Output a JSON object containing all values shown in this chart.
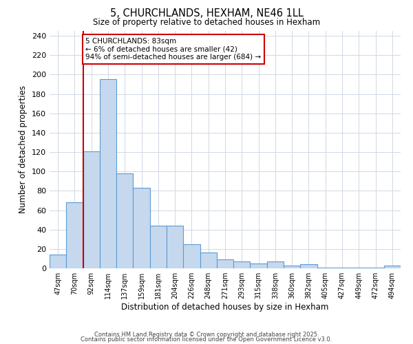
{
  "title": "5, CHURCHLANDS, HEXHAM, NE46 1LL",
  "subtitle": "Size of property relative to detached houses in Hexham",
  "xlabel": "Distribution of detached houses by size in Hexham",
  "ylabel": "Number of detached properties",
  "bar_labels": [
    "47sqm",
    "70sqm",
    "92sqm",
    "114sqm",
    "137sqm",
    "159sqm",
    "181sqm",
    "204sqm",
    "226sqm",
    "248sqm",
    "271sqm",
    "293sqm",
    "315sqm",
    "338sqm",
    "360sqm",
    "382sqm",
    "405sqm",
    "427sqm",
    "449sqm",
    "472sqm",
    "494sqm"
  ],
  "bar_values": [
    14,
    68,
    121,
    195,
    98,
    83,
    44,
    44,
    25,
    16,
    9,
    7,
    5,
    7,
    3,
    4,
    1,
    1,
    1,
    1,
    3
  ],
  "bar_color": "#c5d8ed",
  "bar_edge_color": "#5b9bd5",
  "ylim": [
    0,
    245
  ],
  "yticks": [
    0,
    20,
    40,
    60,
    80,
    100,
    120,
    140,
    160,
    180,
    200,
    220,
    240
  ],
  "vline_x_idx": 2,
  "vline_color": "#cc0000",
  "annotation_text": "5 CHURCHLANDS: 83sqm\n← 6% of detached houses are smaller (42)\n94% of semi-detached houses are larger (684) →",
  "annotation_box_color": "#ffffff",
  "annotation_box_edge_color": "#cc0000",
  "footer_line1": "Contains HM Land Registry data © Crown copyright and database right 2025.",
  "footer_line2": "Contains public sector information licensed under the Open Government Licence v3.0.",
  "background_color": "#ffffff",
  "grid_color": "#d0d8e4"
}
